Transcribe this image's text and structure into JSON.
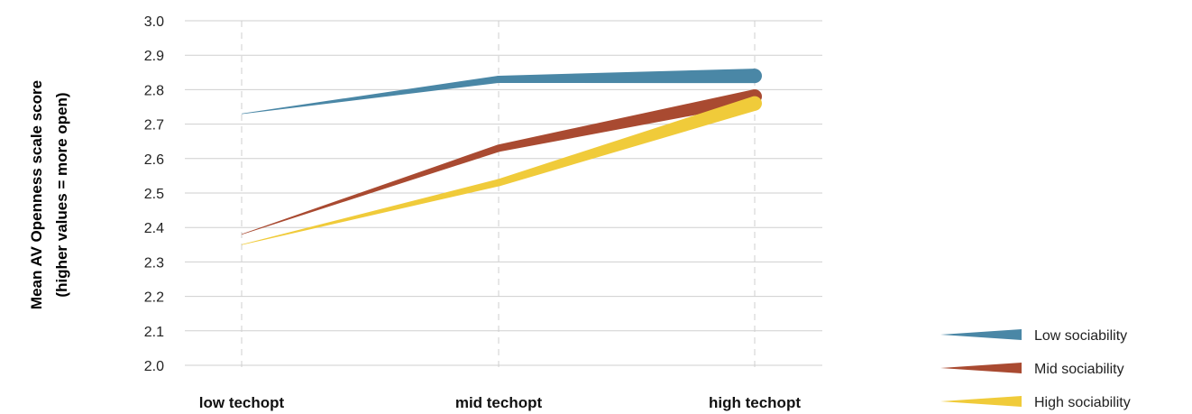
{
  "chart_data": {
    "type": "line",
    "ylabel_lines": [
      "Mean AV Openness scale score",
      "(higher values = more open)"
    ],
    "xlabel": "",
    "categories": [
      "low techopt",
      "mid techopt",
      "high techopt"
    ],
    "ylim": [
      2.0,
      3.0
    ],
    "yticks": [
      "3.0",
      "2.9",
      "2.8",
      "2.7",
      "2.6",
      "2.5",
      "2.4",
      "2.3",
      "2.2",
      "2.1",
      "2.0"
    ],
    "grid": {
      "horizontal": true,
      "vertical": "dashed"
    },
    "legend_position": "bottom-right",
    "line_width_grows_along_x": true,
    "series": [
      {
        "name": "Low sociability",
        "color": "#4a87a6",
        "values": [
          2.73,
          2.83,
          2.84
        ]
      },
      {
        "name": "Mid sociability",
        "color": "#a94a31",
        "values": [
          2.38,
          2.63,
          2.78
        ]
      },
      {
        "name": "High sociability",
        "color": "#f0cb3a",
        "values": [
          2.35,
          2.53,
          2.76
        ]
      }
    ]
  }
}
